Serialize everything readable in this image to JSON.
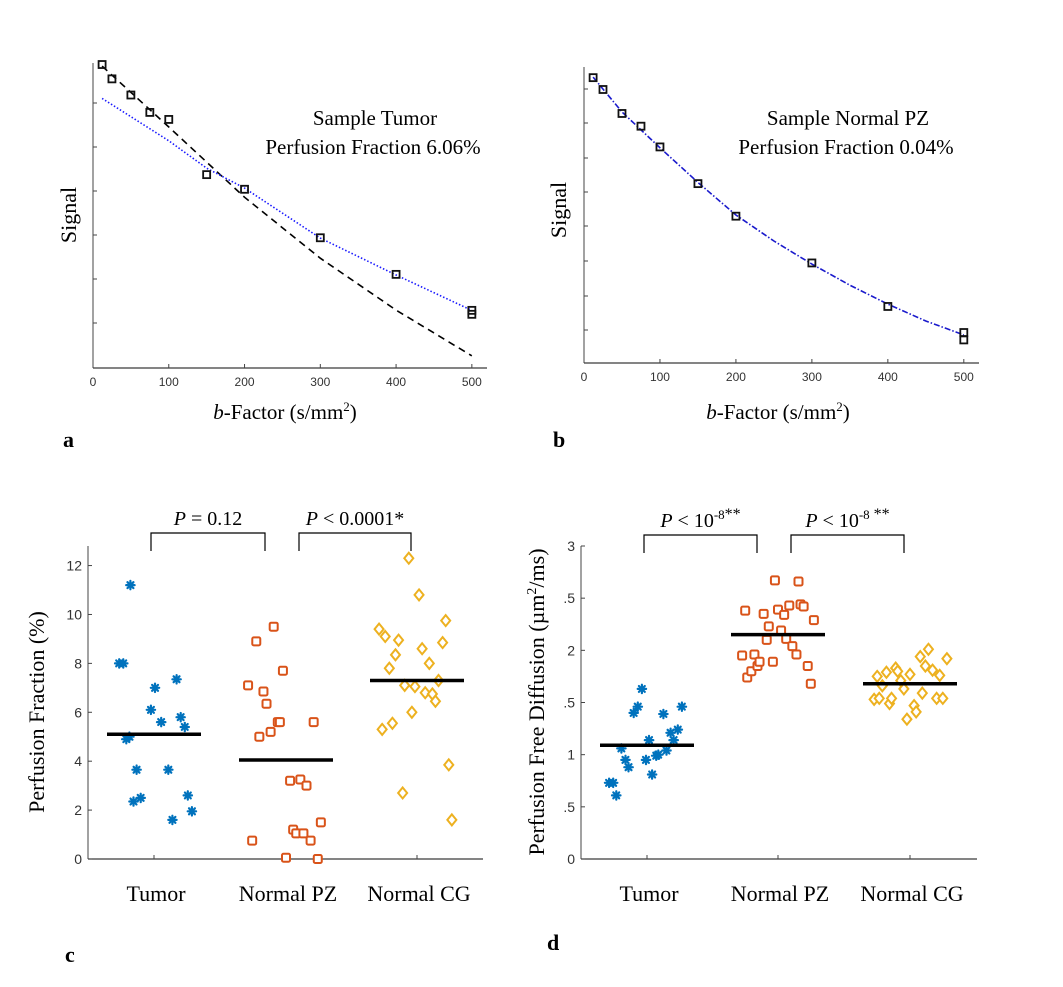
{
  "figure": {
    "panel_labels": [
      "a",
      "b",
      "c",
      "d"
    ]
  },
  "chart_data": [
    {
      "id": "a",
      "type": "scatter",
      "title": "",
      "annotation": [
        "Sample Tumor",
        "Perfusion Fraction 6.06%"
      ],
      "xlabel_italic": "b",
      "xlabel_rest": "-Factor (s/mm",
      "xlabel_sup": "2",
      "xlabel_close": ")",
      "ylabel": "Signal",
      "xlim": [
        0,
        520
      ],
      "ylim": [
        0,
        1
      ],
      "xticks": [
        0,
        100,
        200,
        300,
        400,
        500
      ],
      "xtick_labels": [
        "0",
        "100",
        "200",
        "300",
        "400",
        "500"
      ],
      "yticks_count": 6,
      "yticks_labeled": false,
      "points": {
        "x": [
          12,
          25,
          50,
          75,
          100,
          150,
          200,
          300,
          400,
          500,
          500
        ],
        "y": [
          0.995,
          0.948,
          0.895,
          0.838,
          0.815,
          0.634,
          0.586,
          0.427,
          0.307,
          0.189,
          0.176
        ]
      },
      "fits": [
        {
          "name": "mono-exponential (dashed)",
          "style": "dashed",
          "color": "#000000",
          "x": [
            12,
            100,
            200,
            300,
            400,
            500
          ],
          "y": [
            0.99,
            0.79,
            0.56,
            0.36,
            0.19,
            0.04
          ]
        },
        {
          "name": "IVIM fit (dotted)",
          "style": "dotted",
          "color": "#1a1aff",
          "x": [
            12,
            100,
            150,
            200,
            300,
            400,
            500
          ],
          "y": [
            0.884,
            0.745,
            0.655,
            0.59,
            0.426,
            0.305,
            0.189
          ]
        }
      ]
    },
    {
      "id": "b",
      "type": "scatter",
      "annotation": [
        "Sample Normal PZ",
        "Perfusion Fraction 0.04%"
      ],
      "xlabel_italic": "b",
      "xlabel_rest": "-Factor (s/mm",
      "xlabel_sup": "2",
      "xlabel_close": ")",
      "ylabel": "Signal",
      "xlim": [
        0,
        520
      ],
      "ylim": [
        0,
        1
      ],
      "xticks": [
        0,
        100,
        200,
        300,
        400,
        500
      ],
      "xtick_labels": [
        "0",
        "100",
        "200",
        "300",
        "400",
        "500"
      ],
      "yticks_count": 8,
      "yticks_labeled": false,
      "points": {
        "x": [
          12,
          25,
          50,
          75,
          100,
          150,
          200,
          300,
          400,
          500,
          500
        ],
        "y": [
          0.964,
          0.924,
          0.843,
          0.8,
          0.73,
          0.606,
          0.496,
          0.338,
          0.191,
          0.103,
          0.078
        ]
      },
      "fits": [
        {
          "name": "fit (dash-dot)",
          "style": "dashdot",
          "color": "#1a1acc",
          "x": [
            12,
            50,
            100,
            150,
            200,
            250,
            300,
            350,
            400,
            450,
            500
          ],
          "y": [
            0.966,
            0.848,
            0.727,
            0.61,
            0.5,
            0.412,
            0.334,
            0.263,
            0.199,
            0.142,
            0.095
          ]
        }
      ]
    },
    {
      "id": "c",
      "type": "scatter",
      "ylabel": "Perfusion Fraction (%)",
      "categories": [
        "Tumor",
        "Normal PZ",
        "Normal CG"
      ],
      "ylim": [
        0,
        12.8
      ],
      "yticks": [
        0,
        2,
        4,
        6,
        8,
        10,
        12
      ],
      "ytick_labels": [
        "0",
        "2",
        "4",
        "6",
        "8",
        "10",
        "12"
      ],
      "series": [
        {
          "name": "Tumor",
          "marker": "asterisk",
          "color": "#0072BD",
          "values": [
            8.0,
            8.0,
            11.2,
            4.9,
            5.0,
            3.65,
            2.35,
            2.5,
            6.1,
            7.0,
            5.6,
            3.65,
            1.6,
            7.35,
            5.8,
            5.4,
            2.6,
            1.95
          ],
          "jitter": [
            -0.34,
            -0.3,
            -0.23,
            -0.27,
            -0.24,
            -0.17,
            -0.2,
            -0.13,
            -0.03,
            0.01,
            0.07,
            0.14,
            0.18,
            0.22,
            0.26,
            0.3,
            0.33,
            0.37
          ],
          "mean": 5.1
        },
        {
          "name": "Normal PZ",
          "marker": "square",
          "color": "#D95319",
          "values": [
            7.1,
            0.75,
            8.9,
            5.0,
            6.85,
            6.35,
            5.2,
            9.5,
            5.6,
            5.6,
            7.7,
            0.05,
            3.2,
            1.2,
            1.05,
            3.25,
            1.05,
            3.0,
            0.75,
            5.6,
            0.0,
            1.5
          ],
          "jitter": [
            -0.37,
            -0.33,
            -0.29,
            -0.26,
            -0.22,
            -0.19,
            -0.15,
            -0.12,
            -0.08,
            -0.06,
            -0.03,
            0.0,
            0.04,
            0.07,
            0.1,
            0.14,
            0.17,
            0.2,
            0.24,
            0.27,
            0.31,
            0.34
          ],
          "mean": 4.05
        },
        {
          "name": "Normal CG",
          "marker": "diamond",
          "color": "#EDB120",
          "values": [
            9.4,
            5.3,
            9.1,
            7.8,
            5.55,
            8.35,
            8.95,
            2.7,
            7.1,
            12.3,
            6.0,
            7.05,
            10.8,
            8.6,
            6.8,
            8.0,
            6.75,
            6.45,
            7.3,
            8.85,
            9.75,
            3.85,
            1.6
          ],
          "jitter": [
            -0.37,
            -0.34,
            -0.31,
            -0.27,
            -0.24,
            -0.21,
            -0.18,
            -0.14,
            -0.12,
            -0.08,
            -0.05,
            -0.02,
            0.02,
            0.05,
            0.08,
            0.12,
            0.15,
            0.18,
            0.21,
            0.25,
            0.28,
            0.31,
            0.34
          ],
          "mean": 7.3
        }
      ],
      "comparisons": [
        {
          "from": "Tumor",
          "to": "Normal PZ",
          "label_italic": "P",
          "label_rest": " = 0.12",
          "sup": "",
          "suffix": ""
        },
        {
          "from": "Normal PZ",
          "to": "Normal CG",
          "label_italic": "P",
          "label_rest": " < 0.0001*",
          "sup": "",
          "suffix": ""
        }
      ]
    },
    {
      "id": "d",
      "type": "scatter",
      "ylabel": "Perfusion Free Diffusion (µm",
      "ylabel_sup": "2",
      "ylabel_close": "/ms)",
      "categories": [
        "Tumor",
        "Normal PZ",
        "Normal CG"
      ],
      "ylim": [
        0,
        3
      ],
      "yticks": [
        0,
        0.5,
        1,
        1.5,
        2,
        2.5,
        3
      ],
      "ytick_labels": [
        "0",
        ".5",
        "1",
        ".5",
        "2",
        ".5",
        "3"
      ],
      "series": [
        {
          "name": "Tumor",
          "marker": "asterisk",
          "color": "#0072BD",
          "values": [
            0.73,
            0.73,
            0.61,
            1.06,
            0.95,
            0.88,
            1.4,
            1.46,
            1.63,
            1.14,
            0.95,
            0.81,
            0.99,
            1.0,
            1.39,
            1.04,
            1.21,
            1.14,
            1.24,
            1.46
          ],
          "jitter": [
            -0.37,
            -0.33,
            -0.3,
            -0.25,
            -0.21,
            -0.18,
            -0.13,
            -0.09,
            -0.05,
            0.02,
            -0.01,
            0.05,
            0.09,
            0.11,
            0.16,
            0.19,
            0.23,
            0.26,
            0.3,
            0.34
          ],
          "mean": 1.09
        },
        {
          "name": "Normal PZ",
          "marker": "square",
          "color": "#D95319",
          "values": [
            1.95,
            2.38,
            1.74,
            1.8,
            1.96,
            1.85,
            1.89,
            2.35,
            2.1,
            2.23,
            1.89,
            2.67,
            2.39,
            2.19,
            2.11,
            2.34,
            2.43,
            2.04,
            1.96,
            2.66,
            2.44,
            2.42,
            1.85,
            1.68,
            2.29
          ],
          "jitter": [
            -0.35,
            -0.32,
            -0.3,
            -0.26,
            -0.23,
            -0.2,
            -0.18,
            -0.14,
            -0.11,
            -0.09,
            -0.05,
            -0.03,
            0.0,
            0.03,
            0.08,
            0.06,
            0.11,
            0.14,
            0.18,
            0.2,
            0.22,
            0.25,
            0.29,
            0.32,
            0.35
          ],
          "mean": 2.15
        },
        {
          "name": "Normal CG",
          "marker": "diamond",
          "color": "#EDB120",
          "values": [
            1.53,
            1.75,
            1.54,
            1.66,
            1.79,
            1.49,
            1.54,
            1.83,
            1.8,
            1.71,
            1.63,
            1.34,
            1.77,
            1.47,
            1.41,
            1.94,
            1.59,
            1.85,
            2.01,
            1.81,
            1.54,
            1.76,
            1.54,
            1.92
          ],
          "jitter": [
            -0.35,
            -0.32,
            -0.3,
            -0.27,
            -0.23,
            -0.2,
            -0.18,
            -0.14,
            -0.12,
            -0.09,
            -0.06,
            -0.03,
            0.0,
            0.04,
            0.06,
            0.1,
            0.12,
            0.15,
            0.18,
            0.22,
            0.26,
            0.29,
            0.32,
            0.36
          ],
          "mean": 1.68
        }
      ],
      "comparisons": [
        {
          "from": "Tumor",
          "to": "Normal PZ",
          "label_italic": "P",
          "label_rest": " < 10",
          "sup": "-8",
          "suffix": "**"
        },
        {
          "from": "Normal PZ",
          "to": "Normal CG",
          "label_italic": "P",
          "label_rest": " < 10",
          "sup": "-8",
          "suffix": " **"
        }
      ]
    }
  ]
}
